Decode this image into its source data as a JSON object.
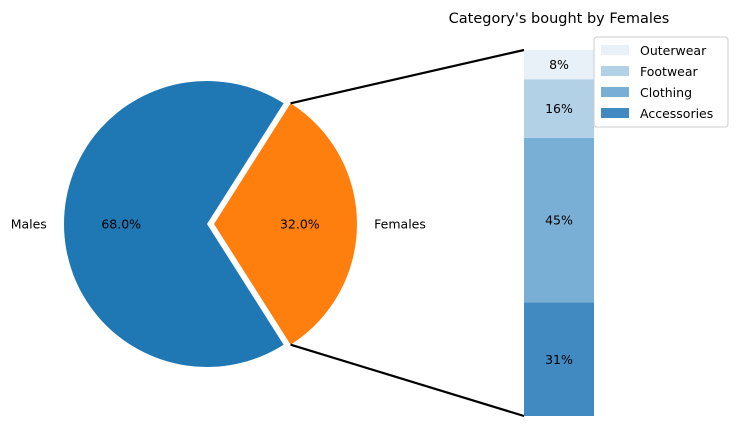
{
  "chart_data": [
    {
      "type": "pie",
      "labels": [
        "Males",
        "Females"
      ],
      "values": [
        68.0,
        32.0
      ],
      "value_labels": [
        "68.0%",
        "32.0%"
      ],
      "colors": [
        "#1f77b4",
        "#ff7f0e"
      ],
      "exploded": "Females"
    },
    {
      "type": "bar",
      "stacked": true,
      "title": "Category's bought by Females",
      "categories": [
        "Accessories",
        "Clothing",
        "Footwear",
        "Outerwear"
      ],
      "values": [
        31,
        45,
        16,
        8
      ],
      "value_labels": [
        "31%",
        "45%",
        "16%",
        "8%"
      ],
      "colors": [
        "#4189c1",
        "#7aafd5",
        "#b2d0e6",
        "#e8f0f8"
      ],
      "legend": {
        "position": "top-right",
        "order": [
          "Outerwear",
          "Footwear",
          "Clothing",
          "Accessories"
        ]
      }
    }
  ]
}
